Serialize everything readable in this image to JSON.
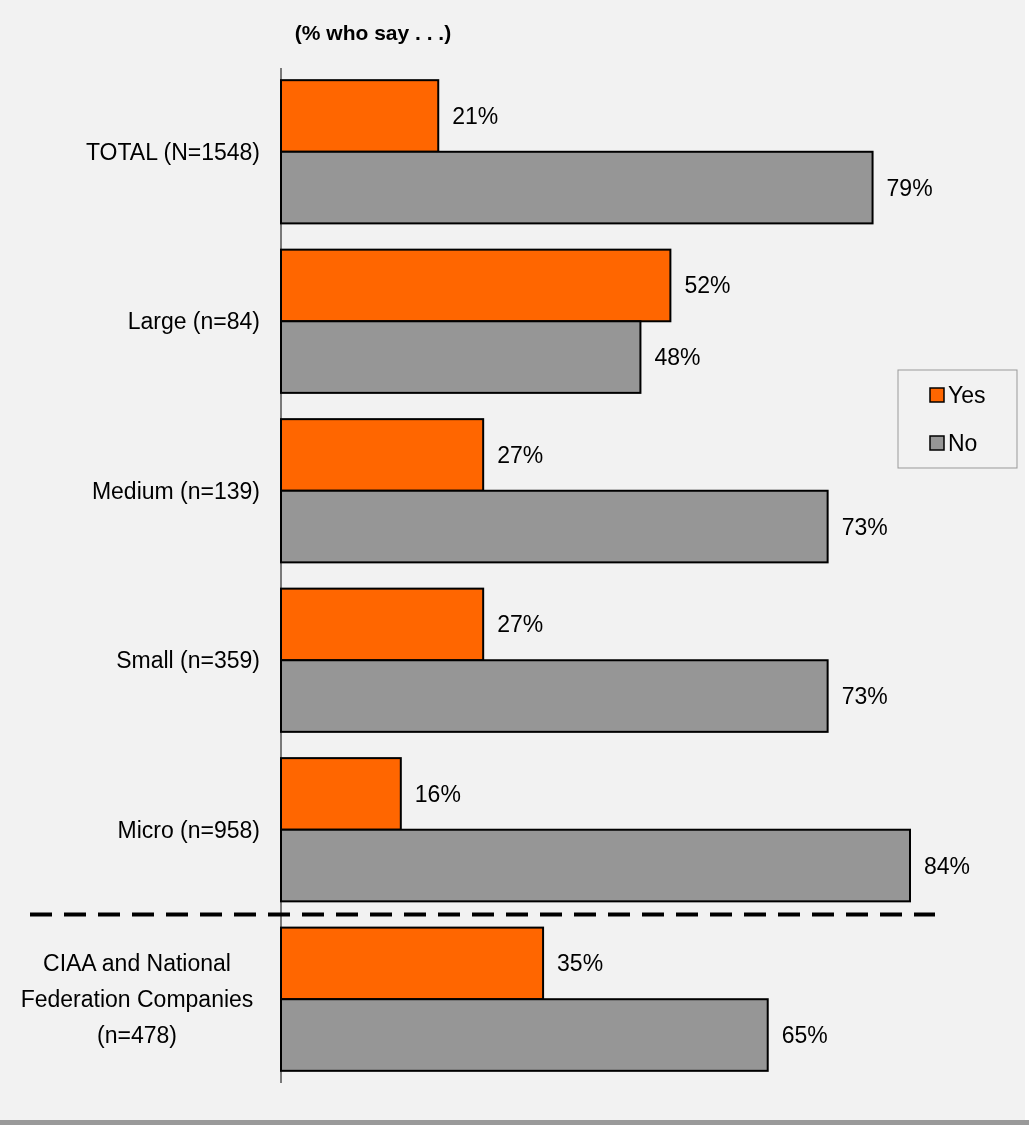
{
  "chart_data": {
    "type": "bar",
    "orientation": "horizontal",
    "title": "(% who say . . .)",
    "categories": [
      "TOTAL (N=1548)",
      "Large (n=84)",
      "Medium (n=139)",
      "Small (n=359)",
      "Micro (n=958)",
      "CIAA and National Federation Companies (n=478)"
    ],
    "series": [
      {
        "name": "Yes",
        "color": "#ff6600",
        "values": [
          21,
          52,
          27,
          27,
          16,
          35
        ],
        "value_labels": [
          "21%",
          "52%",
          "27%",
          "27%",
          "16%",
          "35%"
        ]
      },
      {
        "name": "No",
        "color": "#969696",
        "values": [
          79,
          48,
          73,
          73,
          84,
          65
        ],
        "value_labels": [
          "79%",
          "48%",
          "73%",
          "73%",
          "84%",
          "65%"
        ]
      }
    ],
    "legend": "right",
    "grid": false
  }
}
